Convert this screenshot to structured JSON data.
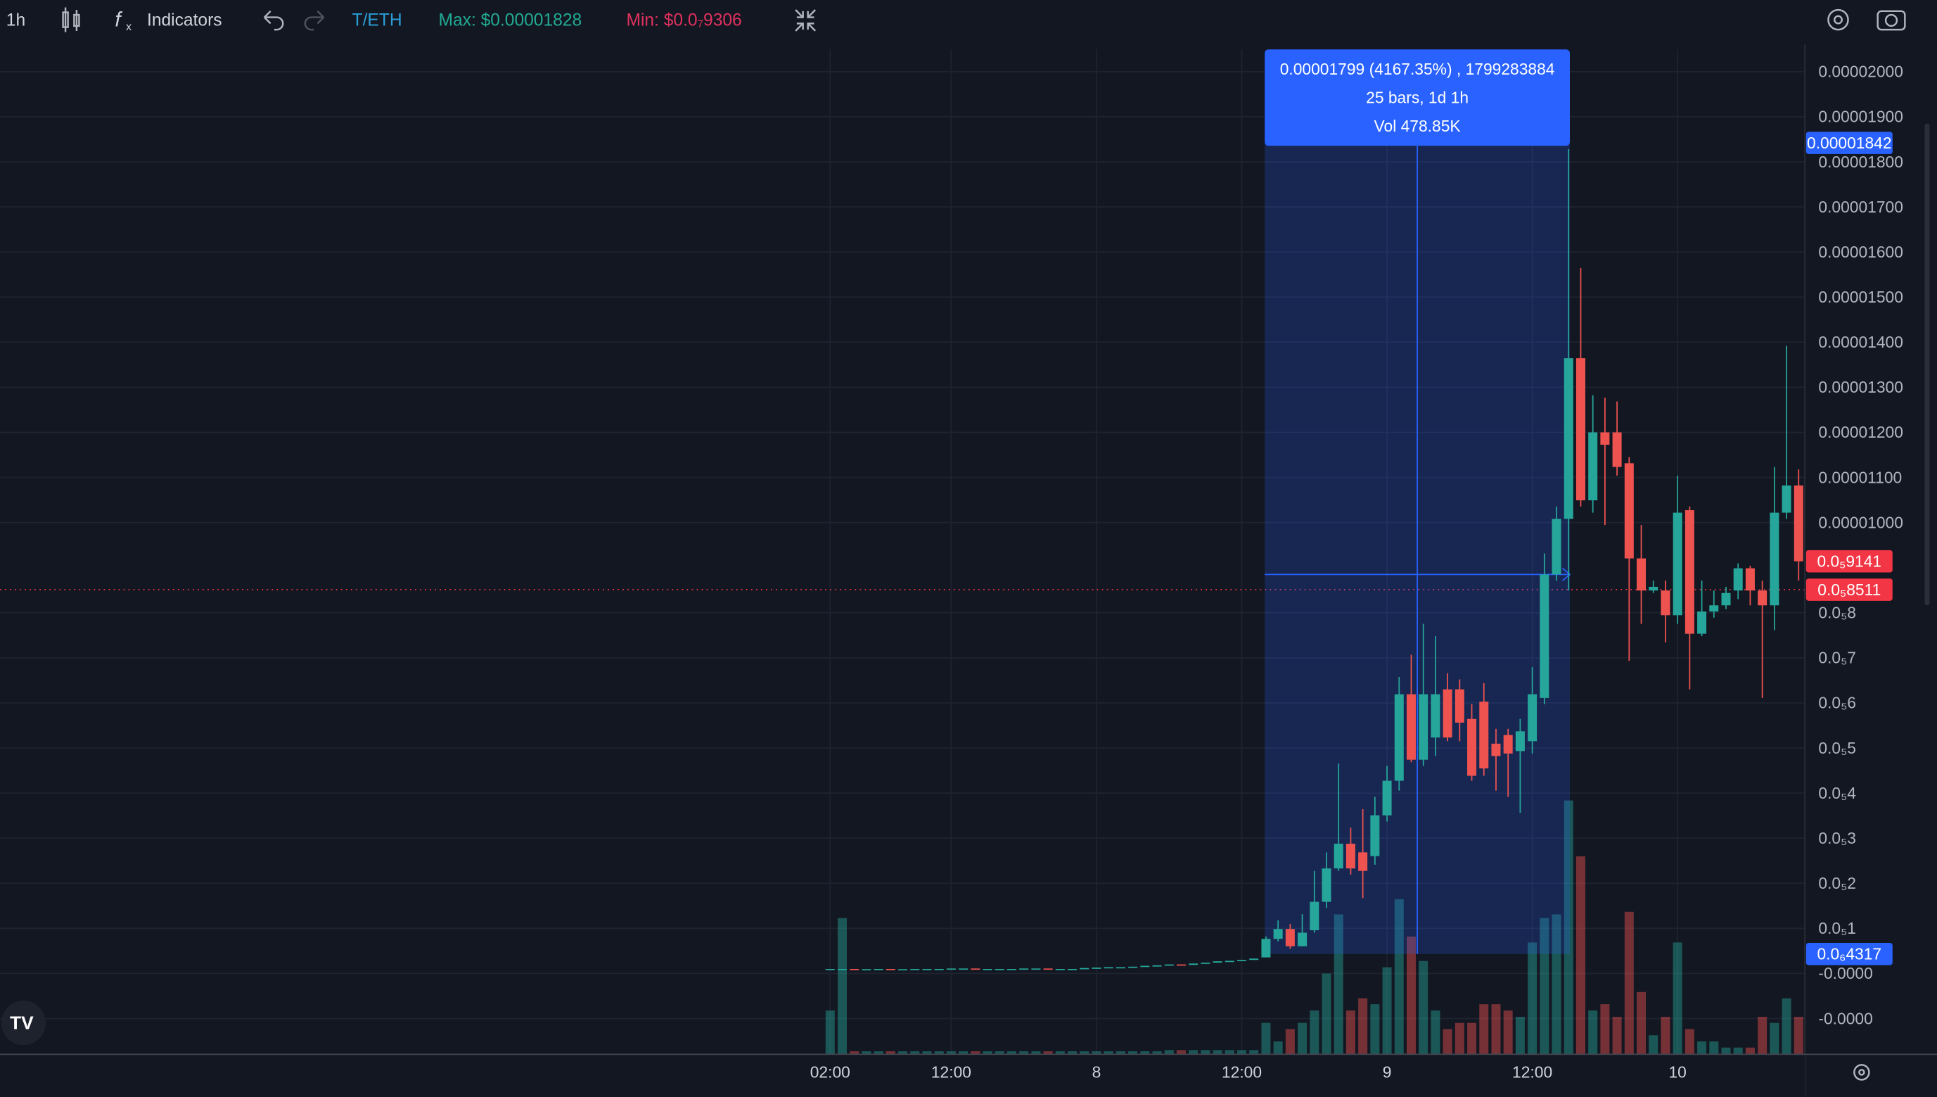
{
  "toolbar": {
    "interval": "1h",
    "indicators": "Indicators",
    "symbol": "T/ETH",
    "max": "Max: $0.00001828",
    "min": "Min: $0.0₇9306"
  },
  "chart_data": {
    "type": "candlestick",
    "categories": [
      "02:00",
      null,
      null,
      null,
      null,
      null,
      null,
      null,
      null,
      null,
      "12:00",
      null,
      null,
      null,
      null,
      null,
      null,
      null,
      null,
      null,
      null,
      null,
      "8",
      null,
      null,
      null,
      null,
      null,
      null,
      null,
      null,
      null,
      null,
      null,
      "12:00",
      null,
      null,
      null,
      null,
      null,
      null,
      null,
      null,
      null,
      null,
      null,
      "9",
      null,
      null,
      null,
      null,
      null,
      null,
      null,
      null,
      null,
      null,
      null,
      "12:00",
      null,
      null,
      null,
      null,
      null,
      null,
      null,
      null,
      null,
      null,
      null,
      "10",
      null,
      null,
      null,
      null,
      null,
      null,
      null,
      null,
      null,
      null
    ],
    "open": [
      1e-07,
      1e-07,
      1e-07,
      9.3e-08,
      9.5e-08,
      1e-07,
      9.5e-08,
      9.5e-08,
      1e-07,
      1e-07,
      1e-07,
      1.1e-07,
      1.1e-07,
      1e-07,
      1e-07,
      1e-07,
      1e-07,
      1.1e-07,
      1.1e-07,
      1e-07,
      1e-07,
      1e-07,
      1.2e-07,
      1.3e-07,
      1.4e-07,
      1.4e-07,
      1.5e-07,
      1.7e-07,
      1.8e-07,
      2e-07,
      1.9e-07,
      2.2e-07,
      2.4e-07,
      2.7e-07,
      2.8e-07,
      3e-07,
      3.56e-07,
      7.67e-07,
      9.86e-07,
      6.03e-07,
      9.59e-07,
      1.589e-06,
      2.329e-06,
      2.877e-06,
      2.685e-06,
      2.603e-06,
      3.507e-06,
      4.274e-06,
      6.192e-06,
      4.74e-06,
      5.233e-06,
      6.301e-06,
      6.301e-06,
      5.644e-06,
      6.027e-06,
      5.096e-06,
      5.288e-06,
      4.932e-06,
      5.151e-06,
      6.11e-06,
      8.849e-06,
      1.0082e-05,
      1.3644e-05,
      1.0493e-05,
      1.2e-05,
      1.2e-05,
      1.1315e-05,
      9.205e-06,
      8.493e-06,
      8.493e-06,
      7.945e-06,
      1.0274e-05,
      7.534e-06,
      8.027e-06,
      8.164e-06,
      8.493e-06,
      8.986e-06,
      8.493e-06,
      8.164e-06,
      1.0219e-05,
      1.0822e-05
    ],
    "high": [
      1e-07,
      1e-07,
      1e-07,
      9.5e-08,
      1e-07,
      1e-07,
      9.5e-08,
      1e-07,
      1e-07,
      1e-07,
      1.1e-07,
      1.1e-07,
      1.1e-07,
      1e-07,
      1e-07,
      1e-07,
      1.1e-07,
      1.1e-07,
      1.1e-07,
      1e-07,
      1e-07,
      1.2e-07,
      1.3e-07,
      1.4e-07,
      1.4e-07,
      1.5e-07,
      1.7e-07,
      1.8e-07,
      2e-07,
      2e-07,
      2.2e-07,
      2.4e-07,
      2.7e-07,
      2.8e-07,
      3e-07,
      3.3e-07,
      8.22e-07,
      1.178e-06,
      1.096e-06,
      1.315e-06,
      2.274e-06,
      2.685e-06,
      4.658e-06,
      3.233e-06,
      3.644e-06,
      3.918e-06,
      4.603e-06,
      6.575e-06,
      7.068e-06,
      7.753e-06,
      7.479e-06,
      6.658e-06,
      6.521e-06,
      5.973e-06,
      6.438e-06,
      5.425e-06,
      5.425e-06,
      5.644e-06,
      6.795e-06,
      9.315e-06,
      1.0356e-05,
      1.828e-05,
      1.5644e-05,
      1.2822e-05,
      1.2767e-05,
      1.2685e-05,
      1.1452e-05,
      9.945e-06,
      8.712e-06,
      8.712e-06,
      1.1041e-05,
      1.0356e-05,
      8.712e-06,
      8.493e-06,
      8.575e-06,
      9.096e-06,
      9.041e-06,
      8.712e-06,
      1.1233e-05,
      1.3918e-05,
      1.1178e-05
    ],
    "low": [
      1e-07,
      1e-07,
      9.3e-08,
      9.3e-08,
      9.5e-08,
      9.5e-08,
      9.5e-08,
      9.5e-08,
      1e-07,
      1e-07,
      1e-07,
      1.1e-07,
      1e-07,
      1e-07,
      1e-07,
      1e-07,
      1e-07,
      1.1e-07,
      1e-07,
      1e-07,
      1e-07,
      1e-07,
      1.2e-07,
      1.3e-07,
      1.4e-07,
      1.4e-07,
      1.5e-07,
      1.7e-07,
      1.8e-07,
      1.9e-07,
      1.9e-07,
      2.2e-07,
      2.4e-07,
      2.7e-07,
      2.8e-07,
      3e-07,
      3.56e-07,
      7.12e-07,
      5.48e-07,
      6.03e-07,
      9.04e-07,
      1.452e-06,
      2.274e-06,
      2.192e-06,
      1.671e-06,
      2.411e-06,
      3.37e-06,
      4.055e-06,
      4.685e-06,
      4.603e-06,
      4.822e-06,
      5.151e-06,
      5.151e-06,
      4.274e-06,
      4.384e-06,
      4.055e-06,
      3.918e-06,
      3.562e-06,
      4.877e-06,
      5.973e-06,
      8.712e-06,
      8.493e-06,
      1.0356e-05,
      1.0219e-05,
      9.945e-06,
      1.1041e-05,
      6.932e-06,
      7.753e-06,
      8.438e-06,
      7.342e-06,
      7.753e-06,
      6.301e-06,
      7.479e-06,
      7.89e-06,
      8.082e-06,
      8.301e-06,
      8.164e-06,
      6.11e-06,
      7.616e-06,
      1.0082e-05,
      8.712e-06
    ],
    "close": [
      1e-07,
      1e-07,
      9.3e-08,
      9.5e-08,
      1e-07,
      9.5e-08,
      9.5e-08,
      1e-07,
      1e-07,
      1e-07,
      1.1e-07,
      1.1e-07,
      1e-07,
      1e-07,
      1e-07,
      1e-07,
      1.1e-07,
      1.1e-07,
      1e-07,
      1e-07,
      1e-07,
      1.2e-07,
      1.3e-07,
      1.4e-07,
      1.4e-07,
      1.5e-07,
      1.7e-07,
      1.8e-07,
      2e-07,
      1.9e-07,
      2.2e-07,
      2.4e-07,
      2.7e-07,
      2.8e-07,
      3e-07,
      3.3e-07,
      7.67e-07,
      9.86e-07,
      6.03e-07,
      9.04e-07,
      1.589e-06,
      2.329e-06,
      2.877e-06,
      2.329e-06,
      2.274e-06,
      3.507e-06,
      4.274e-06,
      6.192e-06,
      4.74e-06,
      6.192e-06,
      6.192e-06,
      5.233e-06,
      5.562e-06,
      4.384e-06,
      4.548e-06,
      4.822e-06,
      4.877e-06,
      5.37e-06,
      6.192e-06,
      8.849e-06,
      1.0082e-05,
      1.3644e-05,
      1.0493e-05,
      1.2e-05,
      1.1726e-05,
      1.1233e-05,
      9.205e-06,
      8.493e-06,
      8.575e-06,
      7.945e-06,
      1.0219e-05,
      7.534e-06,
      8.027e-06,
      8.164e-06,
      8.438e-06,
      8.986e-06,
      8.493e-06,
      8.164e-06,
      1.0219e-05,
      1.0822e-05,
      9.141e-06
    ],
    "volume": [
      11700,
      36700,
      670,
      670,
      670,
      670,
      670,
      670,
      670,
      670,
      670,
      670,
      670,
      670,
      670,
      670,
      670,
      670,
      670,
      670,
      670,
      670,
      670,
      670,
      670,
      670,
      670,
      670,
      1000,
      1000,
      1000,
      1000,
      1000,
      1000,
      1000,
      1000,
      8350,
      3340,
      6680,
      8350,
      11700,
      21700,
      37700,
      11700,
      15000,
      13400,
      23400,
      41800,
      31700,
      25100,
      11700,
      6680,
      8350,
      8350,
      13400,
      13400,
      11700,
      10000,
      30100,
      36700,
      37700,
      68500,
      53400,
      11700,
      13400,
      10000,
      38400,
      16700,
      5010,
      10000,
      30100,
      6680,
      3340,
      3340,
      1670,
      1670,
      1670,
      10000,
      8350,
      15000,
      10000
    ],
    "up_color": "#26a69a",
    "down_color": "#ef5350",
    "ylim": [
      -1.781e-06,
      2.0493e-05
    ],
    "yticks": [
      {
        "value": 2e-05,
        "label": "0.00002000"
      },
      {
        "value": 1.9e-05,
        "label": "0.00001900"
      },
      {
        "value": 1.8e-05,
        "label": "0.00001800"
      },
      {
        "value": 1.7e-05,
        "label": "0.00001700"
      },
      {
        "value": 1.6e-05,
        "label": "0.00001600"
      },
      {
        "value": 1.5e-05,
        "label": "0.00001500"
      },
      {
        "value": 1.4e-05,
        "label": "0.00001400"
      },
      {
        "value": 1.3e-05,
        "label": "0.00001300"
      },
      {
        "value": 1.2e-05,
        "label": "0.00001200"
      },
      {
        "value": 1.1e-05,
        "label": "0.00001100"
      },
      {
        "value": 1e-05,
        "label": "0.00001000"
      },
      {
        "value": 8e-06,
        "label": "0.0₅8"
      },
      {
        "value": 7e-06,
        "label": "0.0₅7"
      },
      {
        "value": 6e-06,
        "label": "0.0₅6"
      },
      {
        "value": 5e-06,
        "label": "0.0₅5"
      },
      {
        "value": 4e-06,
        "label": "0.0₅4"
      },
      {
        "value": 3e-06,
        "label": "0.0₅3"
      },
      {
        "value": 2e-06,
        "label": "0.0₅2"
      },
      {
        "value": 1e-06,
        "label": "0.0₅1"
      },
      {
        "value": 0,
        "label": "-0.0000"
      },
      {
        "value": -1e-06,
        "label": "-0.0000"
      }
    ],
    "grid": true,
    "price_tags": [
      {
        "value": 1.842e-05,
        "label": "0.00001842",
        "color": "#2962ff"
      },
      {
        "value": 9.141e-06,
        "label": "0.0₅9141",
        "color": "#f23645"
      },
      {
        "value": 8.511e-06,
        "label": "0.0₅8511",
        "color": "#f23645"
      },
      {
        "value": 4.317e-07,
        "label": "0.0₆4317",
        "color": "#2962ff"
      }
    ],
    "measure": {
      "change": "0.00001799 (4167.35%) , 1799283884",
      "bars": "25 bars, 1d 1h",
      "volume": "Vol 478.85K"
    }
  }
}
